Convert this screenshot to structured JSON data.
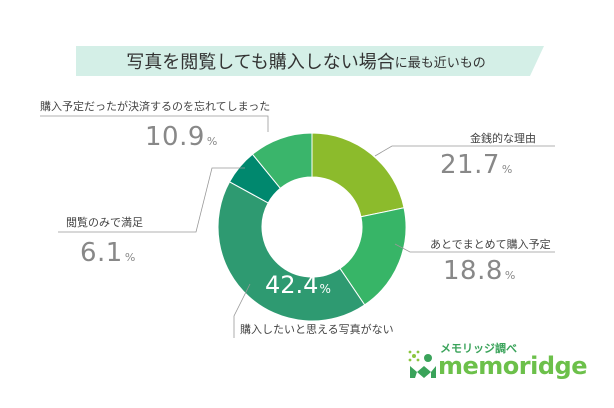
{
  "title": {
    "main": "写真を閲覧しても購入しない場合",
    "suffix": "に最も近いもの"
  },
  "chart_data": {
    "type": "pie",
    "donut": true,
    "title": "写真を閲覧しても購入しない場合に最も近いもの",
    "unit": "%",
    "slices": [
      {
        "label": "金銭的な理由",
        "value": 21.7,
        "color": "#8cbb2c"
      },
      {
        "label": "あとでまとめて購入予定",
        "value": 18.8,
        "color": "#37b567"
      },
      {
        "label": "購入したいと思える写真がない",
        "value": 42.4,
        "color": "#2e9a71"
      },
      {
        "label": "閲覧のみで満足",
        "value": 6.1,
        "color": "#00886e"
      },
      {
        "label": "購入予定だったが決済するのを忘れてしまった",
        "value": 10.9,
        "color": "#3ab56b"
      }
    ]
  },
  "logo": {
    "top_text": "メモリッジ調べ",
    "main_text": "memoridge"
  }
}
